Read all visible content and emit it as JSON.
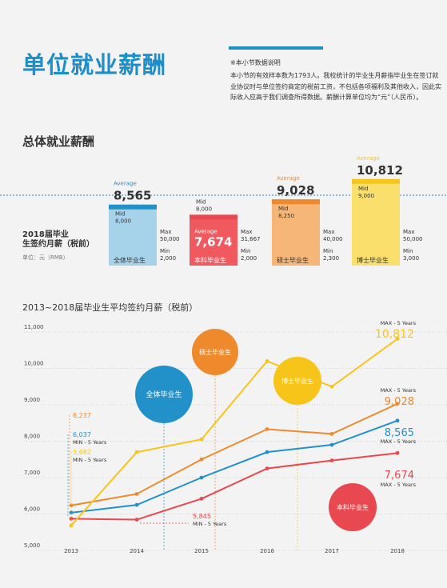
{
  "page": {
    "title": "单位就业薪酬",
    "note_title": "※本小节数据说明",
    "note_body": "本小节的有效样本数为1793人。我校统计的毕业生月薪指毕业生在签订就业协议时与单位签约商定的税前工资，不包括各项福利及其他收入，因此实际收入应高于我们调查所得数据。薪酬计算单位均为“元”（人民币）。",
    "section1_title": "总体就业薪酬",
    "section2_title": "2013~2018届毕业生平均签约月薪（税前）"
  },
  "colors": {
    "blue": "#2291c9",
    "red": "#e8484f",
    "orange": "#ef8a2c",
    "yellow": "#f7c419",
    "blue_light": "#a7d3ea",
    "red_light": "#f05a5f",
    "orange_light": "#f6b678",
    "yellow_light": "#fadf6c",
    "title_blue": "#1d8ec8"
  },
  "chart_data": [
    {
      "type": "bar",
      "title": "2018届毕业生签约月薪（税前）",
      "subtitle": "单位：元（RMB）",
      "categories": [
        "全体毕业生",
        "本科毕业生",
        "硕士毕业生",
        "博士毕业生"
      ],
      "bars": [
        {
          "category": "全体毕业生",
          "average": 8565,
          "average_label": "8,565",
          "mid": "8,000",
          "max": "50,000",
          "min": "2,000"
        },
        {
          "category": "本科毕业生",
          "average": 7674,
          "average_label": "7,674",
          "mid": "8,000",
          "max": "31,667",
          "min": "2,000"
        },
        {
          "category": "硕士毕业生",
          "average": 9028,
          "average_label": "9,028",
          "mid": "8,250",
          "max": "40,000",
          "min": "2,300"
        },
        {
          "category": "博士毕业生",
          "average": 10812,
          "average_label": "10,812",
          "mid": "9,000",
          "max": "50,000",
          "min": "3,000"
        }
      ],
      "labels": {
        "average": "Average",
        "mid": "Mid",
        "max": "Max",
        "min": "Min"
      }
    },
    {
      "type": "line",
      "title": "2013~2018届毕业生平均签约月薪（税前）",
      "x": [
        "2013",
        "2014",
        "2015",
        "2016",
        "2017",
        "2018"
      ],
      "ylim": [
        5000,
        11000
      ],
      "yticks": [
        5000,
        6000,
        7000,
        8000,
        9000,
        10000,
        11000
      ],
      "ytick_labels": [
        "5,000",
        "6,000",
        "7,000",
        "8,000",
        "9,000",
        "10,000",
        "11,000"
      ],
      "grid": true,
      "series": [
        {
          "name": "全体毕业生",
          "values": [
            6037,
            6250,
            7000,
            7700,
            7900,
            8565
          ],
          "min_label": "6,037",
          "max_label": "8,565",
          "min_tag": "MIN - 5 Years",
          "max_tag": "MAX - 5 Years"
        },
        {
          "name": "本科毕业生",
          "values": [
            5870,
            5845,
            6420,
            7250,
            7470,
            7674
          ],
          "min_label": "5,845",
          "max_label": "7,674",
          "min_tag": "MIN - 5 Years",
          "max_tag": "MAX - 5 Years"
        },
        {
          "name": "硕士毕业生",
          "values": [
            6237,
            6550,
            7500,
            8330,
            8200,
            9028
          ],
          "min_label": "6,237",
          "max_label": "9,028",
          "min_tag": "",
          "max_tag": "MAX - 5 Years"
        },
        {
          "name": "博士毕业生",
          "values": [
            5682,
            7700,
            8050,
            10200,
            9500,
            10812
          ],
          "min_label": "5,682",
          "max_label": "10,812",
          "min_tag": "MIN - 5 Years",
          "max_tag": "MAX - 5 Years"
        }
      ]
    }
  ]
}
